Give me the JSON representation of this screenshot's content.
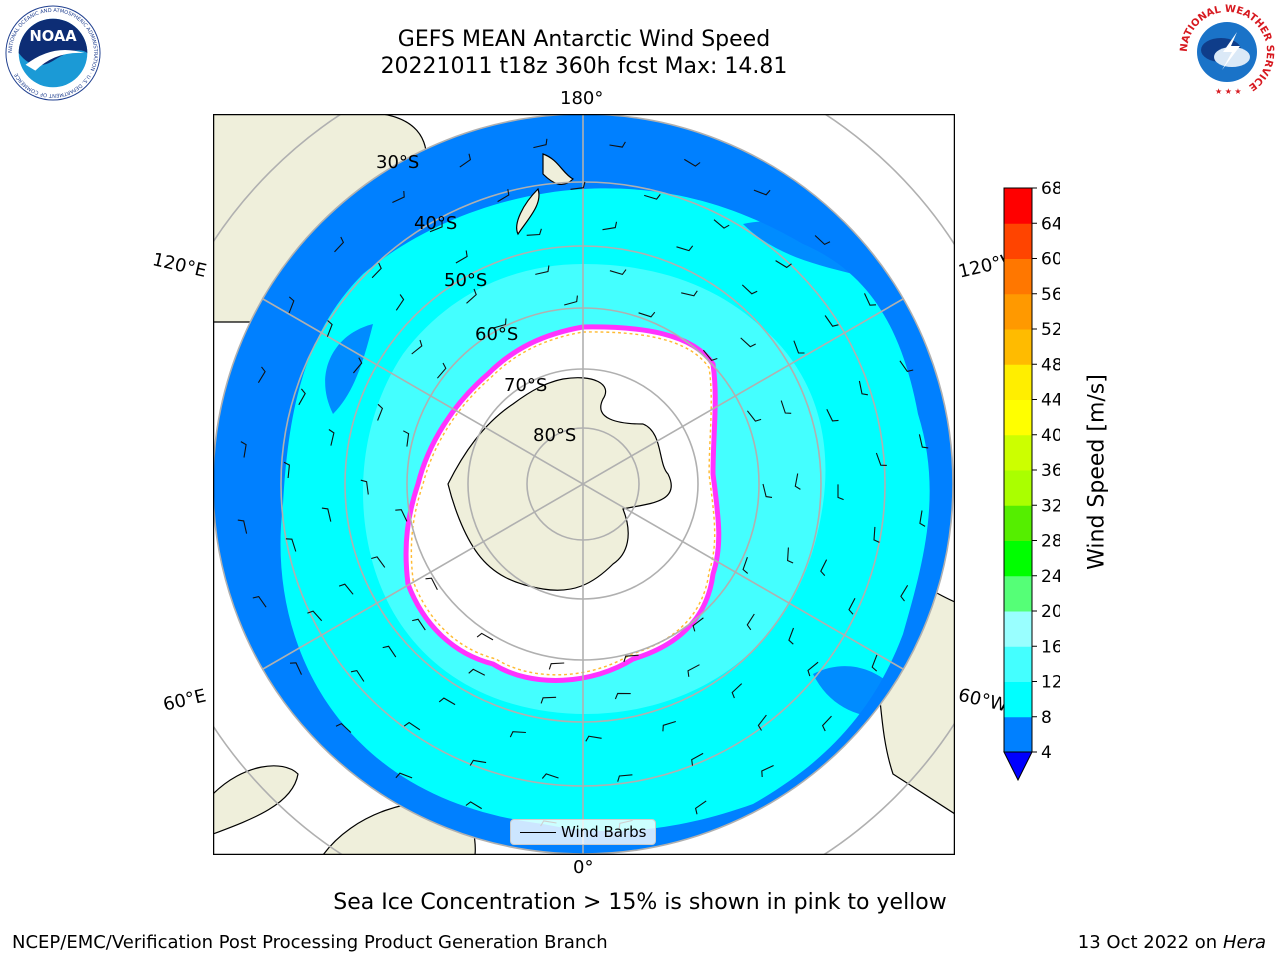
{
  "header": {
    "title_line1": "GEFS MEAN Antarctic Wind Speed",
    "title_line2": "20221011 t18z 360h fcst   Max: 14.81"
  },
  "logos": {
    "noaa_text": "NOAA",
    "noaa_ring_text": "NATIONAL OCEANIC AND ATMOSPHERIC ADMINISTRATION · U.S. DEPARTMENT OF COMMERCE",
    "nws_ring_text": "NATIONAL WEATHER SERVICE"
  },
  "map": {
    "projection": "south-polar-stereographic",
    "longitude_labels": {
      "top": "180°",
      "bottom": "0°",
      "upper_left": "120°E",
      "upper_right": "120°W",
      "lower_left": "60°E",
      "lower_right": "60°W"
    },
    "latitude_labels": [
      "30°S",
      "40°S",
      "50°S",
      "60°S",
      "70°S",
      "80°S"
    ],
    "legend_label": "Wind Barbs",
    "colors": {
      "ocean_low": "#0080ff",
      "ocean_mid": "#00ffff",
      "land": "#efefdb",
      "ice_edge": "#ff33ff",
      "ice_edge_inner": "#ffbb33",
      "grid": "#b0b0b0"
    }
  },
  "colorbar": {
    "title": "Wind Speed [m/s]",
    "ticks": [
      "4",
      "8",
      "12",
      "16",
      "20",
      "24",
      "28",
      "32",
      "36",
      "40",
      "44",
      "48",
      "52",
      "56",
      "60",
      "64",
      "68"
    ],
    "under_color": "#0000ff",
    "colors": [
      "#0080ff",
      "#00ffff",
      "#44ffff",
      "#99ffff",
      "#55ff77",
      "#00ff00",
      "#55ee00",
      "#aaff00",
      "#ccff00",
      "#ffff00",
      "#ffee00",
      "#ffbb00",
      "#ff9900",
      "#ff7700",
      "#ff4400",
      "#ff0000"
    ]
  },
  "caption": "Sea Ice Concentration > 15% is shown in pink to yellow",
  "footer": {
    "left": "NCEP/EMC/Verification Post Processing Product Generation Branch",
    "right_date": "13 Oct 2022 on",
    "right_host": "Hera"
  }
}
